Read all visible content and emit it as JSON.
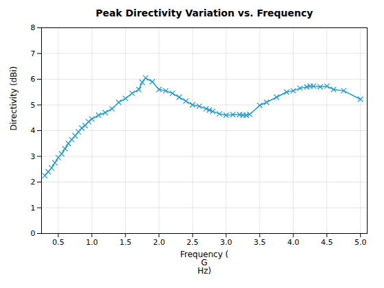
{
  "chart_data": {
    "type": "line",
    "title": "Peak Directivity Variation vs. Frequency",
    "xlabel": "Frequency (\nG\nHz)",
    "ylabel": "Directivity (dBi)",
    "x": [
      0.3,
      0.35,
      0.4,
      0.45,
      0.5,
      0.55,
      0.6,
      0.65,
      0.7,
      0.75,
      0.8,
      0.85,
      0.9,
      0.95,
      1.0,
      1.1,
      1.2,
      1.3,
      1.4,
      1.5,
      1.6,
      1.7,
      1.75,
      1.8,
      1.9,
      2.0,
      2.1,
      2.2,
      2.3,
      2.4,
      2.5,
      2.6,
      2.7,
      2.75,
      2.8,
      2.9,
      3.0,
      3.1,
      3.2,
      3.25,
      3.3,
      3.35,
      3.5,
      3.6,
      3.75,
      3.9,
      4.0,
      4.1,
      4.2,
      4.25,
      4.3,
      4.4,
      4.5,
      4.6,
      4.75,
      5.0
    ],
    "values": [
      2.25,
      2.4,
      2.55,
      2.75,
      2.95,
      3.1,
      3.3,
      3.5,
      3.65,
      3.8,
      3.95,
      4.1,
      4.2,
      4.35,
      4.45,
      4.6,
      4.7,
      4.85,
      5.1,
      5.25,
      5.45,
      5.6,
      5.88,
      6.05,
      5.9,
      5.6,
      5.55,
      5.45,
      5.3,
      5.15,
      5.0,
      4.95,
      4.85,
      4.8,
      4.75,
      4.65,
      4.6,
      4.62,
      4.62,
      4.6,
      4.6,
      4.63,
      4.98,
      5.1,
      5.3,
      5.5,
      5.55,
      5.65,
      5.7,
      5.73,
      5.73,
      5.7,
      5.73,
      5.6,
      5.55,
      5.22
    ],
    "color": "#1f9bcf",
    "marker": "x",
    "xlim": [
      0.25,
      5.1
    ],
    "ylim": [
      0,
      8
    ],
    "xticks": [
      0.5,
      {
        "value": 1,
        "label": "1.0"
      },
      1.5,
      {
        "value": 2,
        "label": "2.0"
      },
      2.5,
      {
        "value": 3,
        "label": "3.0"
      },
      3.5,
      {
        "value": 4,
        "label": "4.0"
      },
      4.5,
      {
        "value": 5,
        "label": "5.0"
      }
    ],
    "yticks": [
      0,
      1,
      2,
      3,
      4,
      5,
      6,
      7,
      8
    ],
    "grid": true
  }
}
